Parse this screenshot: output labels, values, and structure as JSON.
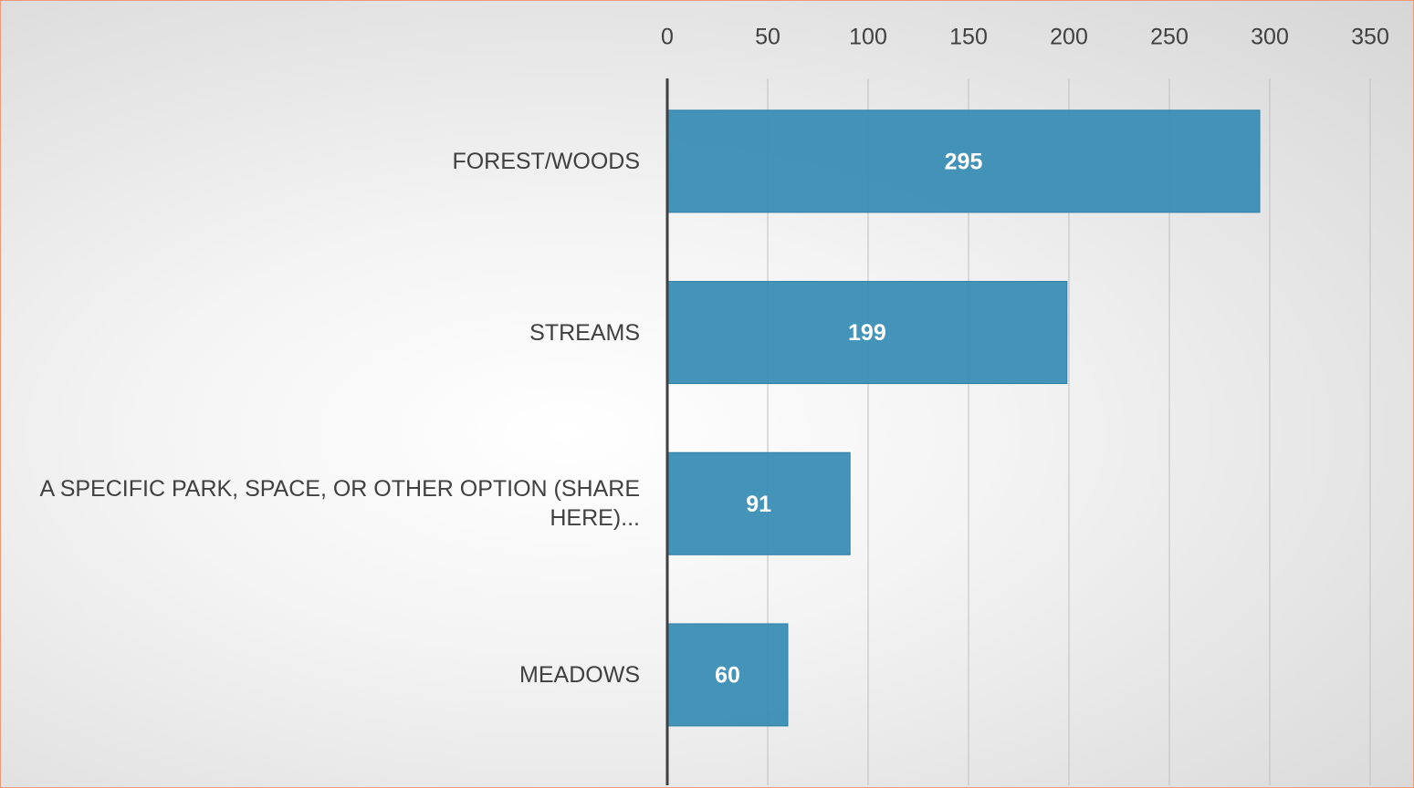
{
  "chart_data": {
    "type": "bar",
    "orientation": "horizontal",
    "categories": [
      "FOREST/WOODS",
      "STREAMS",
      "A SPECIFIC PARK, SPACE, OR OTHER OPTION (SHARE HERE)...",
      "MEADOWS"
    ],
    "values": [
      295,
      199,
      91,
      60
    ],
    "color": "#3a8db5",
    "xlim": [
      0,
      350
    ],
    "xticks": [
      0,
      50,
      100,
      150,
      200,
      250,
      300,
      350
    ],
    "grid": true
  }
}
